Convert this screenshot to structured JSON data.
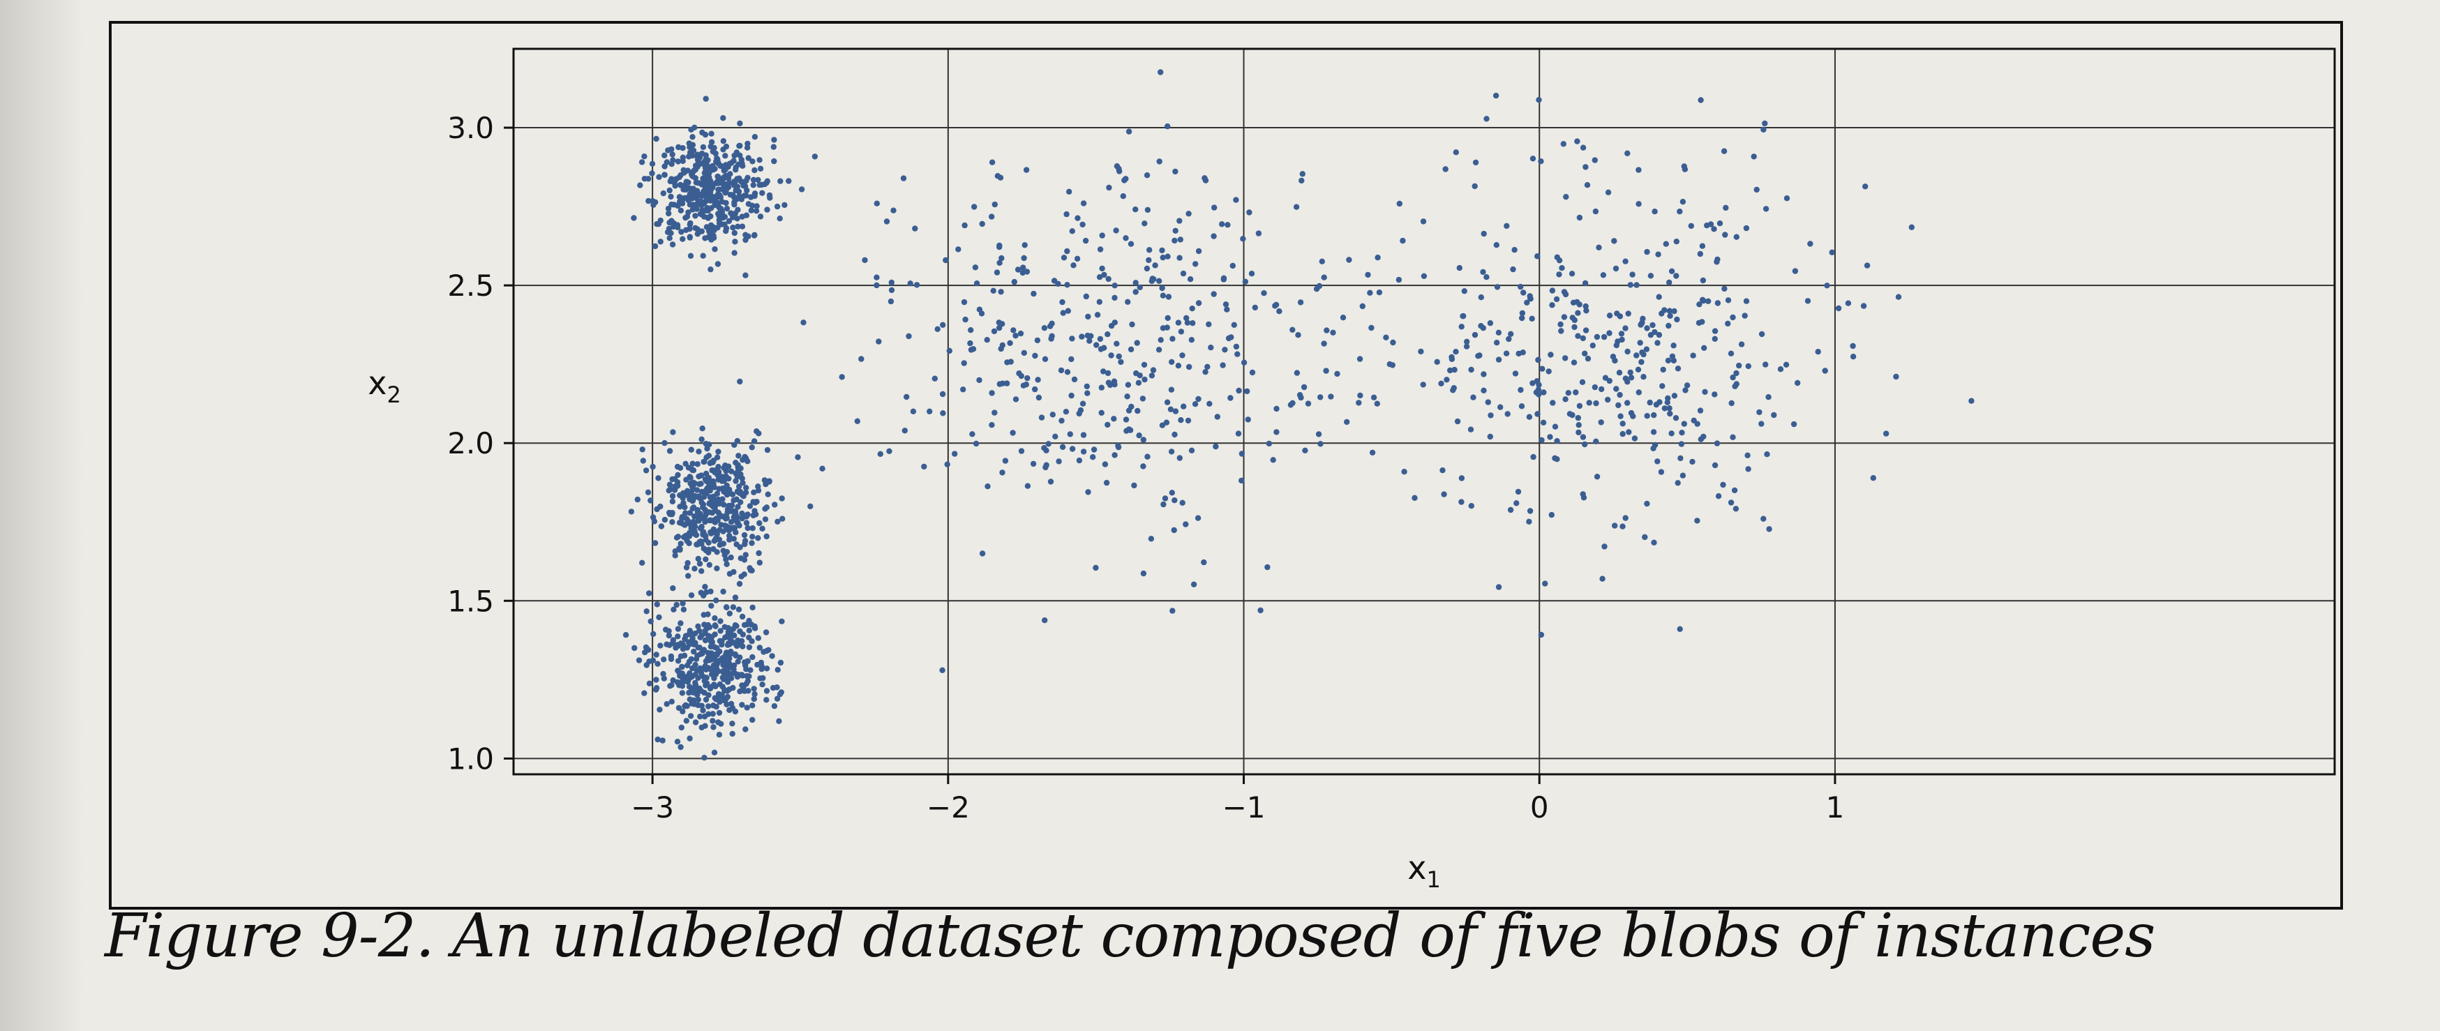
{
  "caption": {
    "label": "Figure 9-2.",
    "text": "An unlabeled dataset composed of five blobs of instances"
  },
  "colors": {
    "page": "#ecebe6",
    "point": "#3b5e92",
    "grid": "#333333",
    "frame": "#111111"
  },
  "chart_data": {
    "type": "scatter",
    "title": "",
    "xlabel": "x1",
    "ylabel": "x2",
    "xlim": [
      -3.47,
      2.69
    ],
    "ylim": [
      0.95,
      3.25
    ],
    "grid": true,
    "xticks": [
      -3,
      -2,
      -1,
      0,
      1
    ],
    "xtick_labels": [
      "−3",
      "−2",
      "−1",
      "0",
      "1"
    ],
    "yticks": [
      1.0,
      1.5,
      2.0,
      2.5,
      3.0
    ],
    "ytick_labels": [
      "1.0",
      "1.5",
      "2.0",
      "2.5",
      "3.0"
    ],
    "blobs": [
      {
        "center": [
          -2.8,
          2.8
        ],
        "std": [
          0.1,
          0.1
        ],
        "count": 420
      },
      {
        "center": [
          -2.8,
          1.8
        ],
        "std": [
          0.1,
          0.1
        ],
        "count": 420
      },
      {
        "center": [
          -2.8,
          1.3
        ],
        "std": [
          0.1,
          0.1
        ],
        "count": 420
      },
      {
        "center": [
          -1.45,
          2.3
        ],
        "std": [
          0.4,
          0.3
        ],
        "count": 420
      },
      {
        "center": [
          0.2,
          2.3
        ],
        "std": [
          0.4,
          0.3
        ],
        "count": 420
      }
    ]
  }
}
